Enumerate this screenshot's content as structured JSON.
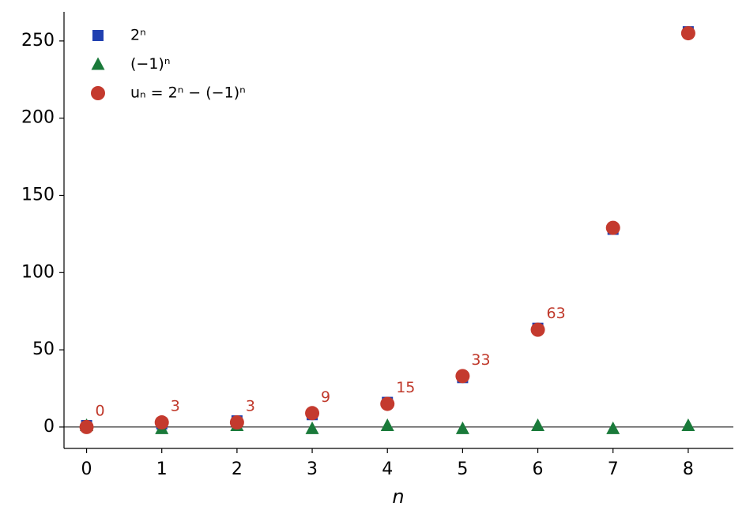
{
  "chart_data": {
    "type": "scatter",
    "x_label": "n",
    "x": [
      0,
      1,
      2,
      3,
      4,
      5,
      6,
      7,
      8
    ],
    "series": [
      {
        "name": "2ⁿ",
        "color": "#2040b0",
        "marker": "square",
        "values": [
          1,
          2,
          4,
          8,
          16,
          32,
          64,
          128,
          256
        ]
      },
      {
        "name": "(−1)ⁿ",
        "color": "#1a7a3a",
        "marker": "triangle",
        "values": [
          1,
          -1,
          1,
          -1,
          1,
          -1,
          1,
          -1,
          1
        ]
      },
      {
        "name": "uₙ = 2ⁿ − (−1)ⁿ",
        "color": "#c43a2e",
        "marker": "circle",
        "values": [
          0,
          3,
          3,
          9,
          15,
          33,
          63,
          129,
          255
        ],
        "value_labels": [
          "0",
          "3",
          "3",
          "9",
          "15",
          "33",
          "63",
          null,
          null
        ]
      }
    ],
    "reference_line": 0,
    "xlim": [
      -0.3,
      8.6
    ],
    "ylim": [
      -13.85,
      268.85
    ],
    "xticks": [
      0,
      1,
      2,
      3,
      4,
      5,
      6,
      7,
      8
    ],
    "yticks": [
      0,
      50,
      100,
      150,
      200,
      250
    ],
    "grid": false,
    "legend": "upper left"
  }
}
